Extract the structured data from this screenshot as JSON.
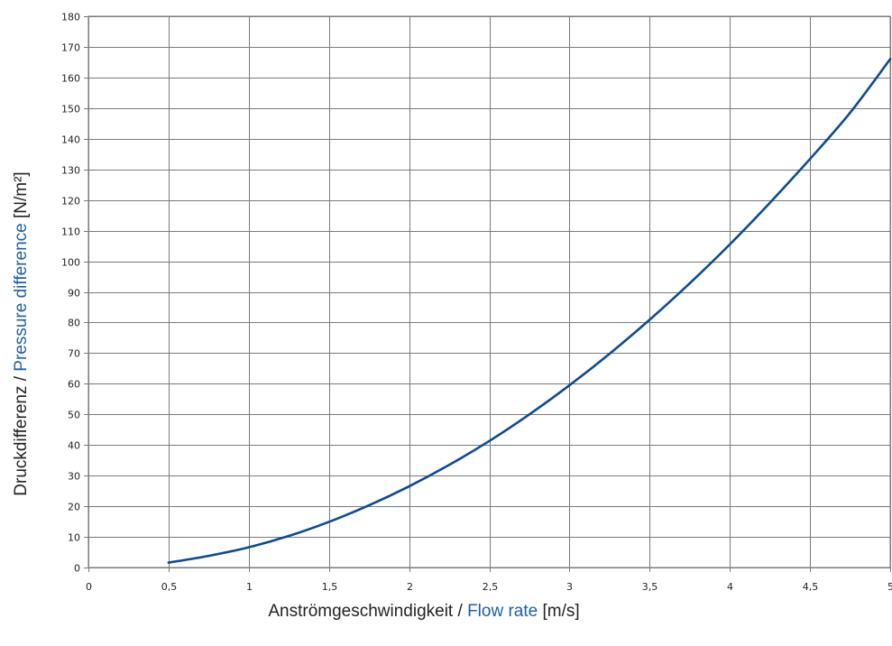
{
  "chart_data": {
    "type": "line",
    "title": "",
    "xlabel": {
      "part1": "Anströmgeschwindigkeit / ",
      "part2": "Flow rate",
      "part3": " [m/s]"
    },
    "ylabel": {
      "part1": "Druckdifferenz / ",
      "part2": "Pressure difference",
      "part3": " [N/m²]"
    },
    "xlim": [
      0,
      5
    ],
    "ylim": [
      0,
      180
    ],
    "x_ticks": [
      "0",
      "0,5",
      "1",
      "1,5",
      "2",
      "2,5",
      "3",
      "3,5",
      "4",
      "4,5",
      "5"
    ],
    "y_ticks": [
      "0",
      "10",
      "20",
      "30",
      "40",
      "50",
      "60",
      "70",
      "80",
      "90",
      "100",
      "110",
      "120",
      "130",
      "140",
      "150",
      "160",
      "170",
      "180"
    ],
    "grid": true,
    "series": [
      {
        "color": "#0d4a91",
        "x": [
          0.5,
          0.75,
          1,
          1.25,
          1.5,
          1.75,
          2,
          2.25,
          2.5,
          2.75,
          3,
          3.25,
          3.5,
          3.75,
          4,
          4.25,
          4.5,
          4.75,
          5
        ],
        "y": [
          1.6,
          3.8,
          6.6,
          10.3,
          14.9,
          20.3,
          26.5,
          33.5,
          41.3,
          50.0,
          59.5,
          69.8,
          80.9,
          92.8,
          105.5,
          119.1,
          133.4,
          148.5,
          166.0
        ]
      }
    ],
    "colors": {
      "label_accent": "#1f5fa6",
      "grid": "#7a7a7a"
    }
  }
}
